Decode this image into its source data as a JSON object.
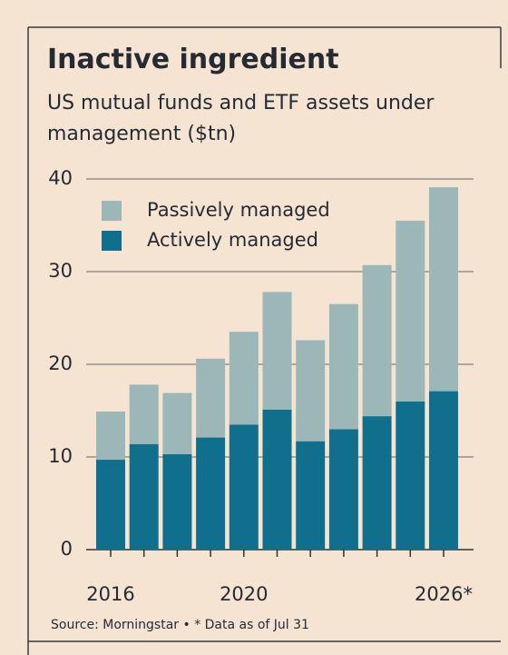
{
  "chart_data": {
    "type": "stacked-bar",
    "title": "Inactive ingredient",
    "subtitle": "US mutual funds and ETF assets under management ($tn)",
    "source": "Source: Morningstar • * Data as of Jul 31",
    "categories": [
      "2016",
      null,
      null,
      null,
      "2020",
      null,
      null,
      null,
      null,
      null,
      "2026*"
    ],
    "series": [
      {
        "name": "Actively managed",
        "color": "#106f8d",
        "values": [
          9.7,
          11.4,
          10.3,
          12.1,
          13.5,
          15.1,
          11.7,
          13.0,
          14.4,
          16.0,
          17.1
        ]
      },
      {
        "name": "Passively managed",
        "color": "#9bb7b7",
        "values": [
          5.2,
          6.4,
          6.6,
          8.5,
          10.0,
          12.7,
          10.9,
          13.5,
          16.3,
          19.5,
          22.0
        ]
      }
    ],
    "ylim": [
      0,
      40
    ],
    "yticks": [
      0,
      10,
      20,
      30,
      40
    ],
    "grid": true,
    "legend": "top-left"
  }
}
